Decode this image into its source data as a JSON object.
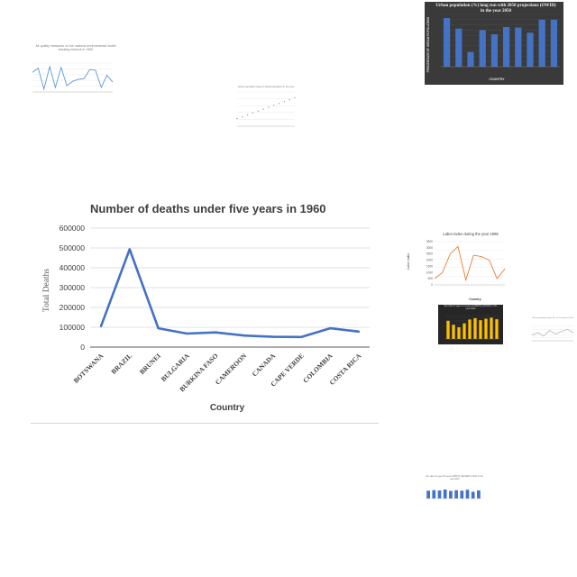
{
  "main": {
    "title": "Number of deaths under five years in 1960",
    "xlabel": "Country",
    "ylabel": "Total Deaths"
  },
  "chart_data": [
    {
      "type": "line",
      "title": "Number of deaths under five years in 1960",
      "xlabel": "Country",
      "ylabel": "Total Deaths",
      "categories": [
        "BOTSWANA",
        "BRAZIL",
        "BRUNEI",
        "BULGARIA",
        "BURKINA FASO",
        "CAMEROON",
        "CANADA",
        "CAPE VERDE",
        "COLOMBIA",
        "COSTA RICA"
      ],
      "values": [
        105000,
        493000,
        95000,
        68000,
        74000,
        58000,
        52000,
        51000,
        95000,
        78000
      ],
      "yticks": [
        "0",
        "100000",
        "200000",
        "300000",
        "400000",
        "500000",
        "600000"
      ],
      "ylim": [
        0,
        600000
      ],
      "grid": true,
      "color": "#4472c4"
    },
    {
      "type": "bar",
      "title": "Urban population (%) long run with 2050 projections (OWID) in the year 2050",
      "xlabel": "COUNTRY",
      "ylabel": "PERCENTAGE OF URBAN POPULATION",
      "values": [
        93,
        73,
        28,
        70,
        62,
        76,
        75,
        65,
        90,
        90
      ],
      "ylim": [
        0,
        100
      ],
      "color": "#4472c4",
      "background": "#3a3a3a"
    },
    {
      "type": "line",
      "title": "Labor index during the year 1965",
      "xlabel": "Country",
      "ylabel": "Labor index",
      "values": [
        500,
        1000,
        2500,
        3100,
        400,
        2400,
        2300,
        2000,
        500,
        1300
      ],
      "ylim": [
        0,
        3500
      ],
      "yticks": [
        "0",
        "500",
        "1000",
        "1500",
        "2000",
        "2500",
        "3000",
        "3500"
      ],
      "color": "#ed7d31"
    },
    {
      "type": "line",
      "title": "Air quality measures on the national environmental health tracking network in 1965",
      "values": [
        88,
        100,
        40,
        104,
        45,
        102,
        50,
        62,
        68,
        70,
        96,
        94,
        45,
        80,
        60
      ],
      "color": "#5b9bd5"
    },
    {
      "type": "scatter",
      "title": "Urban population large or liberal population in the year",
      "values": [
        40,
        42,
        44,
        46,
        48,
        50,
        52,
        54,
        56,
        58,
        60,
        62
      ],
      "color": "#7f7f7f"
    },
    {
      "type": "bar",
      "title": "Sex ratio for ages 0-4 years (CANDHS) (ONSCF) in the year 2020",
      "values": [
        70,
        55,
        45,
        60,
        75,
        80,
        72,
        78,
        82,
        76
      ],
      "color": "#ffc000",
      "background": "#262626"
    },
    {
      "type": "bar",
      "title": "Sex ratio for ages 60 years (WBDH) (GENERIC) 2023 in the year 2023",
      "values": [
        70,
        75,
        72,
        80,
        68,
        74,
        70,
        78,
        60,
        72
      ],
      "color": "#4472c4"
    },
    {
      "type": "line",
      "title": "Urban population ages 65+ at the national level",
      "values": [
        50,
        55,
        48,
        60,
        52,
        58,
        62,
        55
      ],
      "color": "#a5a5a5"
    }
  ]
}
